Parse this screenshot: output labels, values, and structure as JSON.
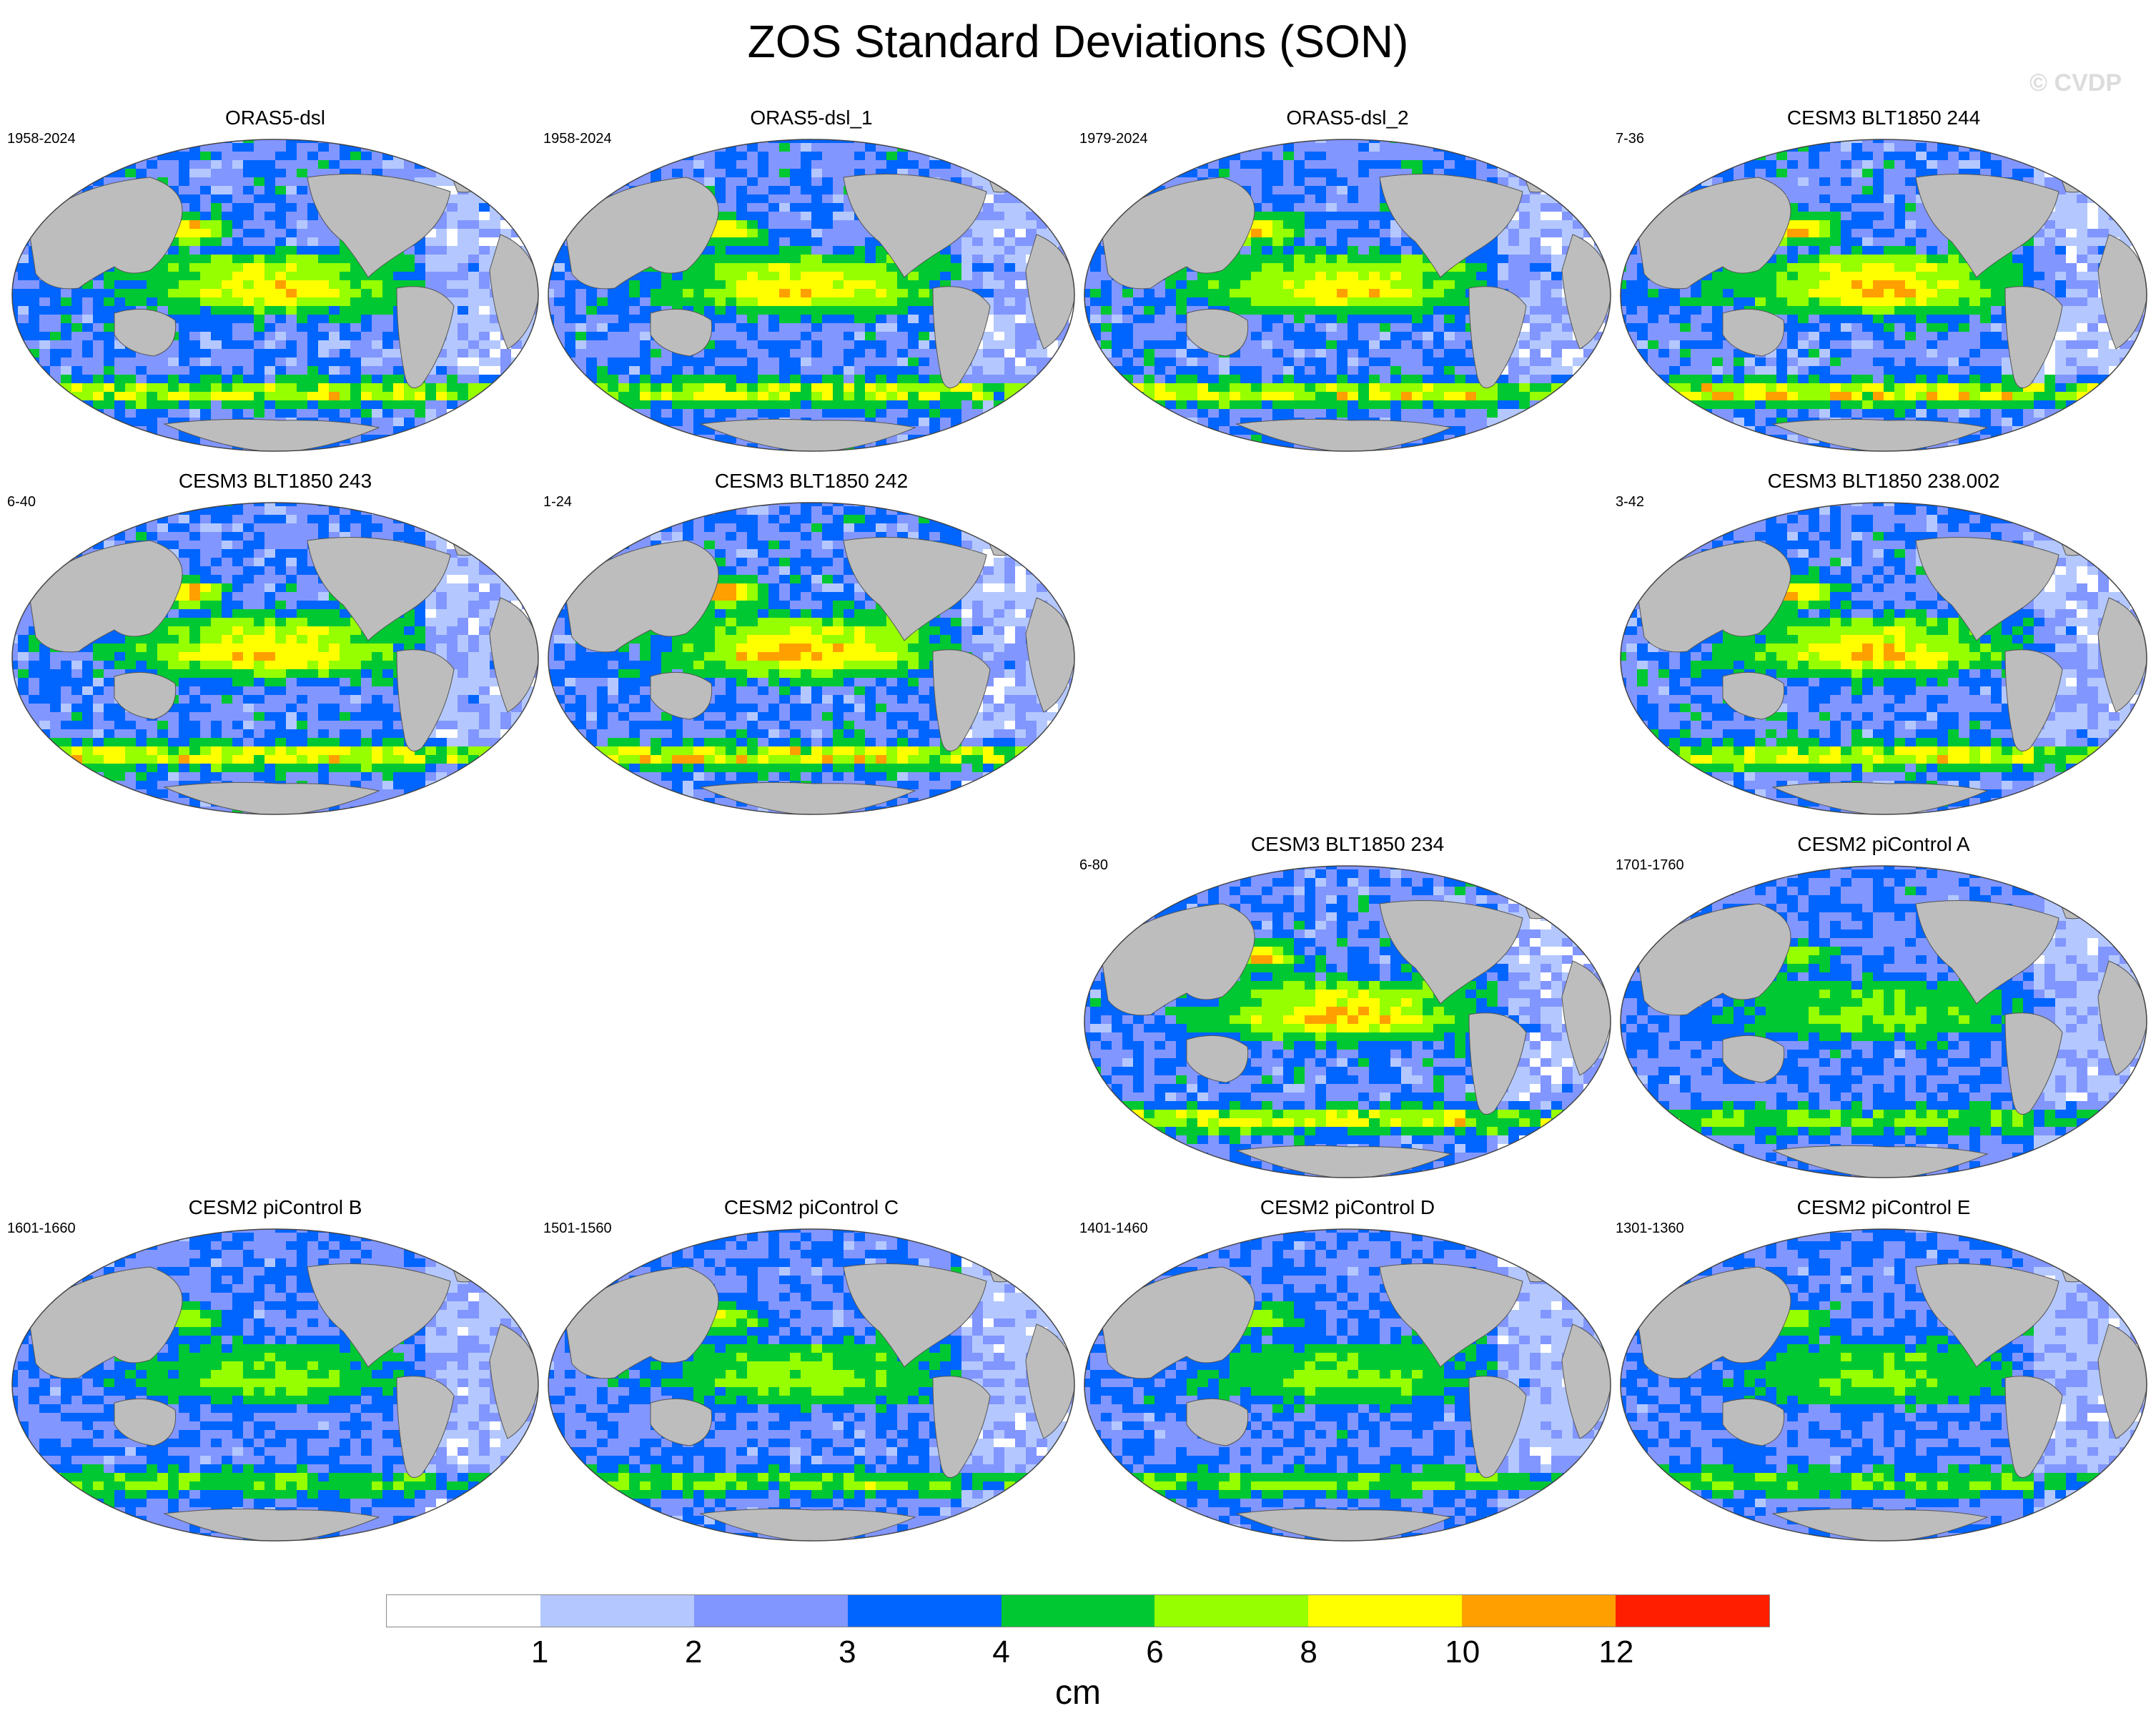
{
  "title": "ZOS Standard Deviations (SON)",
  "watermark": "© CVDP",
  "colorbar": {
    "colors": [
      "#ffffff",
      "#b4c8ff",
      "#8296ff",
      "#0064ff",
      "#00c832",
      "#96ff00",
      "#ffff00",
      "#ffa000",
      "#ff1e00"
    ],
    "ticks": [
      "1",
      "2",
      "3",
      "4",
      "6",
      "8",
      "10",
      "12"
    ],
    "units": "cm"
  },
  "panels": [
    {
      "row": 0,
      "col": 0,
      "title": "ORAS5-dsl",
      "years": "1958-2024",
      "intensity": 0.75
    },
    {
      "row": 0,
      "col": 1,
      "title": "ORAS5-dsl_1",
      "years": "1958-2024",
      "intensity": 0.75
    },
    {
      "row": 0,
      "col": 2,
      "title": "ORAS5-dsl_2",
      "years": "1979-2024",
      "intensity": 0.75
    },
    {
      "row": 0,
      "col": 3,
      "title": "CESM3 BLT1850 244",
      "years": "7-36",
      "intensity": 0.85
    },
    {
      "row": 1,
      "col": 0,
      "title": "CESM3 BLT1850 243",
      "years": "6-40",
      "intensity": 0.82
    },
    {
      "row": 1,
      "col": 1,
      "title": "CESM3 BLT1850 242",
      "years": "1-24",
      "intensity": 0.88
    },
    {
      "row": 1,
      "col": 3,
      "title": "CESM3 BLT1850 238.002",
      "years": "3-42",
      "intensity": 0.8
    },
    {
      "row": 2,
      "col": 2,
      "title": "CESM3 BLT1850 234",
      "years": "6-80",
      "intensity": 0.8
    },
    {
      "row": 2,
      "col": 3,
      "title": "CESM2 piControl A",
      "years": "1701-1760",
      "intensity": 0.45
    },
    {
      "row": 3,
      "col": 0,
      "title": "CESM2 piControl B",
      "years": "1601-1660",
      "intensity": 0.45
    },
    {
      "row": 3,
      "col": 1,
      "title": "CESM2 piControl C",
      "years": "1501-1560",
      "intensity": 0.5
    },
    {
      "row": 3,
      "col": 2,
      "title": "CESM2 piControl D",
      "years": "1401-1460",
      "intensity": 0.45
    },
    {
      "row": 3,
      "col": 3,
      "title": "CESM2 piControl E",
      "years": "1301-1360",
      "intensity": 0.45
    }
  ]
}
